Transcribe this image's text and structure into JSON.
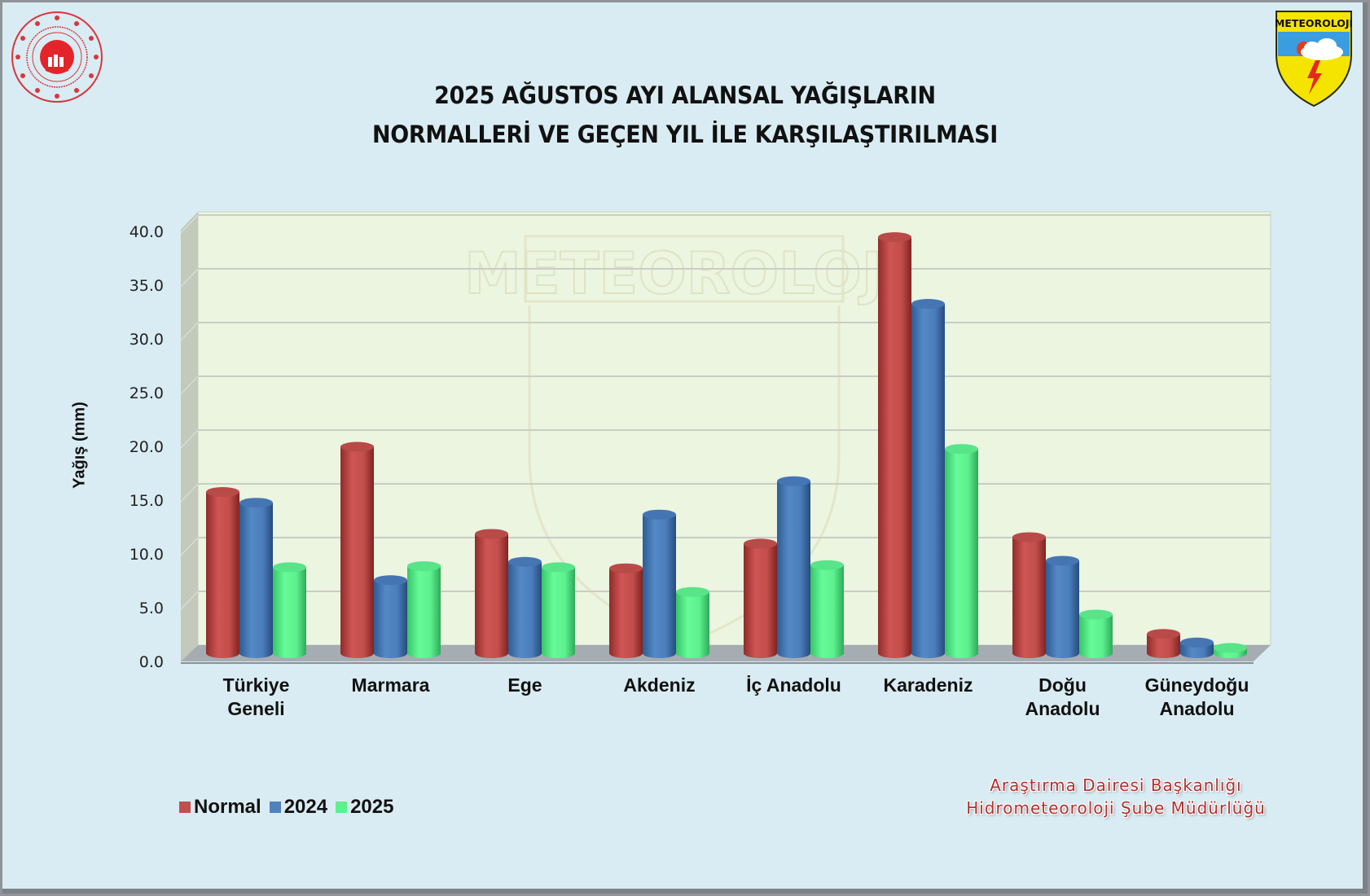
{
  "header": {
    "title_line1": "2025 AĞUSTOS AYI ALANSAL YAĞIŞLARIN",
    "title_line2": "NORMALLERİ VE GEÇEN YIL İLE KARŞILAŞTIRILMASI",
    "logo_left": "ministry-seal-icon",
    "logo_right": "meteoroloji-shield-icon",
    "logo_right_text": "METEOROLOJİ"
  },
  "footer": {
    "credit_line1": "Araştırma Dairesi Başkanlığı",
    "credit_line2": "Hidrometeoroloji Şube Müdürlüğü"
  },
  "colors": {
    "normal": "#c0504d",
    "y2024": "#4f81bd",
    "y2025": "#5cf08e",
    "plot_bg": "#ebf5e0",
    "page_bg": "#d9ecf3"
  },
  "chart_data": {
    "type": "bar",
    "title": "2025 AĞUSTOS AYI ALANSAL YAĞIŞLARIN NORMALLERİ VE GEÇEN YIL İLE KARŞILAŞTIRILMASI",
    "xlabel": "",
    "ylabel": "Yağış (mm)",
    "ylim": [
      0,
      40
    ],
    "yticks": [
      "0.0",
      "5.0",
      "10.0",
      "15.0",
      "20.0",
      "25.0",
      "30.0",
      "35.0",
      "40.0"
    ],
    "grid": true,
    "legend_position": "bottom-left",
    "categories": [
      "Türkiye Geneli",
      "Marmara",
      "Ege",
      "Akdeniz",
      "İç Anadolu",
      "Karadeniz",
      "Doğu Anadolu",
      "Güneydoğu Anadolu"
    ],
    "category_lines": [
      [
        "Türkiye",
        "Geneli"
      ],
      [
        "Marmara"
      ],
      [
        "Ege"
      ],
      [
        "Akdeniz"
      ],
      [
        "İç Anadolu"
      ],
      [
        "Karadeniz"
      ],
      [
        "Doğu",
        "Anadolu"
      ],
      [
        "Güneydoğu",
        "Anadolu"
      ]
    ],
    "series": [
      {
        "name": "Normal",
        "color": "#c0504d",
        "values": [
          15.0,
          19.2,
          11.1,
          7.9,
          10.2,
          38.7,
          10.8,
          1.8
        ]
      },
      {
        "name": "2024",
        "color": "#4f81bd",
        "values": [
          14.0,
          6.8,
          8.5,
          12.9,
          16.0,
          32.5,
          8.6,
          1.0
        ]
      },
      {
        "name": "2025",
        "color": "#5cf08e",
        "values": [
          8.0,
          8.1,
          8.0,
          5.7,
          8.2,
          19.0,
          3.6,
          0.5
        ]
      }
    ]
  }
}
